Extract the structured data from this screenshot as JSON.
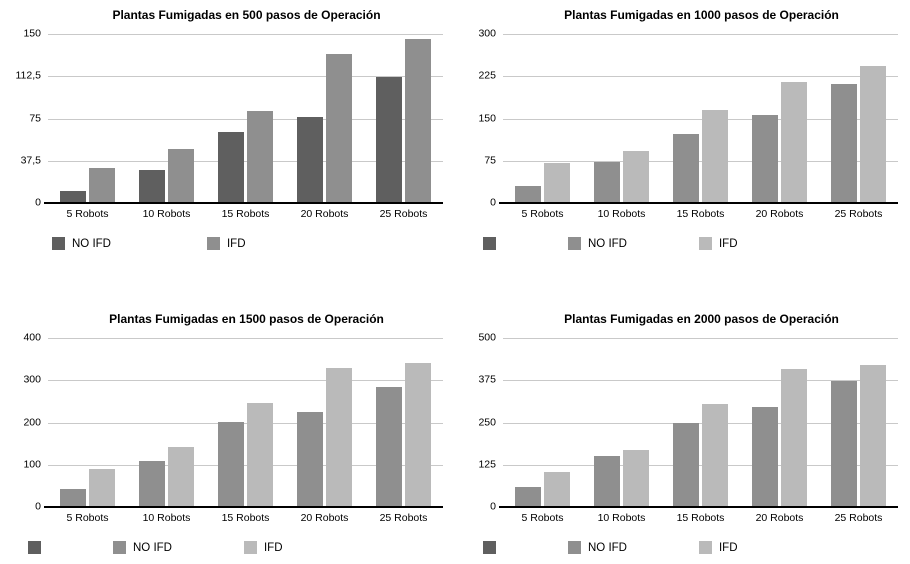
{
  "page": {
    "background": "#ffffff"
  },
  "palette": {
    "series_dark": "#5f5f5f",
    "series_mid": "#8f8f8f",
    "series_light": "#bababa",
    "gridline": "#c9c9c9",
    "axis": "#000000"
  },
  "chart_data": [
    {
      "type": "bar",
      "title": "Plantas Fumigadas en 500 pasos de Operación",
      "categories": [
        "5 Robots",
        "10 Robots",
        "15 Robots",
        "20 Robots",
        "25 Robots"
      ],
      "series": [
        {
          "name": "NO IFD",
          "color": "#5f5f5f",
          "values": [
            11,
            29,
            63,
            76,
            112
          ]
        },
        {
          "name": "IFD",
          "color": "#8f8f8f",
          "values": [
            31,
            48,
            82,
            132,
            146
          ]
        }
      ],
      "xlabel": "",
      "ylabel": "",
      "ylim": [
        0,
        150
      ],
      "ytick_labels_top_to_bottom": [
        "150",
        "112,5",
        "75",
        "37,5",
        "0"
      ],
      "grid": true,
      "legend_position": "bottom",
      "legend": [
        {
          "label": "NO IFD",
          "color": "#5f5f5f"
        },
        {
          "label": "IFD",
          "color": "#8f8f8f"
        }
      ]
    },
    {
      "type": "bar",
      "title": "Plantas Fumigadas en 1000 pasos de Operación",
      "categories": [
        "5 Robots",
        "10 Robots",
        "15 Robots",
        "20 Robots",
        "25 Robots"
      ],
      "series": [
        {
          "name": "NO IFD",
          "color": "#8f8f8f",
          "values": [
            30,
            73,
            122,
            157,
            212
          ]
        },
        {
          "name": "IFD",
          "color": "#bababa",
          "values": [
            71,
            93,
            166,
            215,
            243
          ]
        }
      ],
      "xlabel": "",
      "ylabel": "",
      "ylim": [
        0,
        300
      ],
      "ytick_labels_top_to_bottom": [
        "300",
        "225",
        "150",
        "75",
        "0"
      ],
      "grid": true,
      "legend_position": "bottom",
      "legend": [
        {
          "label": "",
          "color": "#5f5f5f"
        },
        {
          "label": "NO IFD",
          "color": "#8f8f8f"
        },
        {
          "label": "IFD",
          "color": "#bababa"
        }
      ]
    },
    {
      "type": "bar",
      "title": "Plantas Fumigadas en 1500 pasos de Operación",
      "categories": [
        "5 Robots",
        "10 Robots",
        "15 Robots",
        "20 Robots",
        "25 Robots"
      ],
      "series": [
        {
          "name": "NO IFD",
          "color": "#8f8f8f",
          "values": [
            43,
            109,
            202,
            225,
            285
          ]
        },
        {
          "name": "IFD",
          "color": "#bababa",
          "values": [
            90,
            143,
            246,
            328,
            340
          ]
        }
      ],
      "xlabel": "",
      "ylabel": "",
      "ylim": [
        0,
        400
      ],
      "ytick_labels_top_to_bottom": [
        "400",
        "300",
        "200",
        "100",
        "0"
      ],
      "grid": true,
      "legend_position": "bottom",
      "legend": [
        {
          "label": "",
          "color": "#5f5f5f"
        },
        {
          "label": "NO IFD",
          "color": "#8f8f8f"
        },
        {
          "label": "IFD",
          "color": "#bababa"
        }
      ]
    },
    {
      "type": "bar",
      "title": "Plantas Fumigadas en 2000 pasos de Operación",
      "categories": [
        "5 Robots",
        "10 Robots",
        "15 Robots",
        "20 Robots",
        "25 Robots"
      ],
      "series": [
        {
          "name": "NO IFD",
          "color": "#8f8f8f",
          "values": [
            58,
            150,
            250,
            295,
            372
          ]
        },
        {
          "name": "IFD",
          "color": "#bababa",
          "values": [
            105,
            170,
            305,
            408,
            420
          ]
        }
      ],
      "xlabel": "",
      "ylabel": "",
      "ylim": [
        0,
        500
      ],
      "ytick_labels_top_to_bottom": [
        "500",
        "375",
        "250",
        "125",
        "0"
      ],
      "grid": true,
      "legend_position": "bottom",
      "legend": [
        {
          "label": "",
          "color": "#5f5f5f"
        },
        {
          "label": "NO IFD",
          "color": "#8f8f8f"
        },
        {
          "label": "IFD",
          "color": "#bababa"
        }
      ]
    }
  ]
}
